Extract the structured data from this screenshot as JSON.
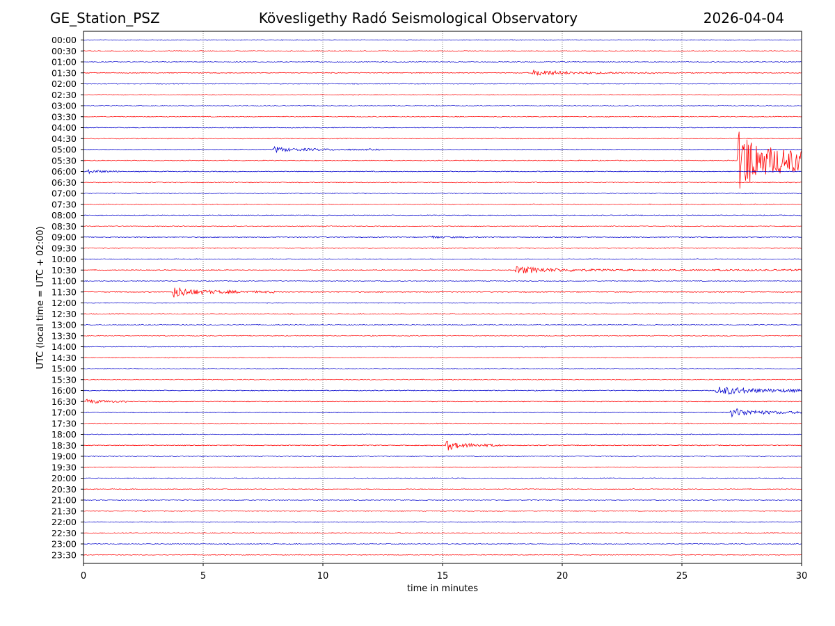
{
  "header": {
    "station": "GE_Station_PSZ",
    "title": "Kövesligethy Radó Seismological Observatory",
    "date": "2026-04-04"
  },
  "chart_data": {
    "type": "line",
    "title": "Kövesligethy Radó Seismological Observatory",
    "xlabel": "time in minutes",
    "ylabel": "UTC (local time = UTC + 02:00)",
    "xlim": [
      0,
      30
    ],
    "xticks": [
      "0",
      "5",
      "10",
      "15",
      "20",
      "25",
      "30"
    ],
    "grid_x": [
      5,
      10,
      15,
      20,
      25
    ],
    "row_labels": [
      "00:00",
      "00:30",
      "01:00",
      "01:30",
      "02:00",
      "02:30",
      "03:00",
      "03:30",
      "04:00",
      "04:30",
      "05:00",
      "05:30",
      "06:00",
      "06:30",
      "07:00",
      "07:30",
      "08:00",
      "08:30",
      "09:00",
      "09:30",
      "10:00",
      "10:30",
      "11:00",
      "11:30",
      "12:00",
      "12:30",
      "13:00",
      "13:30",
      "14:00",
      "14:30",
      "15:00",
      "15:30",
      "16:00",
      "16:30",
      "17:00",
      "17:30",
      "18:00",
      "18:30",
      "19:00",
      "19:30",
      "20:00",
      "20:30",
      "21:00",
      "21:30",
      "22:00",
      "22:30",
      "23:00",
      "23:30"
    ],
    "trace_colors": [
      "#0000cc",
      "#ff0000"
    ],
    "noise_level": 0.6,
    "events": [
      {
        "row": "01:30",
        "start": 18.7,
        "peak": 4,
        "duration": 1.2,
        "coda": 2.5,
        "tail_end": 24
      },
      {
        "row": "05:00",
        "start": 7.9,
        "peak": 4,
        "duration": 0.6,
        "coda": 2.2,
        "tail_end": 12.5
      },
      {
        "row": "05:30",
        "start": 27.3,
        "peak": 46,
        "duration": 1.0,
        "coda": 6,
        "tail_end": 30
      },
      {
        "row": "06:00",
        "start": 0.05,
        "peak": 2.5,
        "duration": 0.6,
        "coda": 1.6,
        "tail_end": 1.6
      },
      {
        "row": "09:00",
        "start": 14.4,
        "peak": 1.8,
        "duration": 0.6,
        "coda": 1.5,
        "tail_end": 17.5
      },
      {
        "row": "10:30",
        "start": 18.0,
        "peak": 5,
        "duration": 1.3,
        "coda": 2.5,
        "tail_end": 30
      },
      {
        "row": "11:30",
        "start": 3.7,
        "peak": 8,
        "duration": 0.7,
        "coda": 2.0,
        "tail_end": 8
      },
      {
        "row": "16:00",
        "start": 26.4,
        "peak": 6,
        "duration": 1.5,
        "coda": 3.5,
        "tail_end": 30
      },
      {
        "row": "16:30",
        "start": 0.05,
        "peak": 3,
        "duration": 0.6,
        "coda": 1.6,
        "tail_end": 1.8
      },
      {
        "row": "17:00",
        "start": 27.0,
        "peak": 6,
        "duration": 0.9,
        "coda": 2.0,
        "tail_end": 30
      },
      {
        "row": "18:30",
        "start": 15.1,
        "peak": 8,
        "duration": 0.3,
        "coda": 1.5,
        "tail_end": 17.5
      }
    ]
  }
}
